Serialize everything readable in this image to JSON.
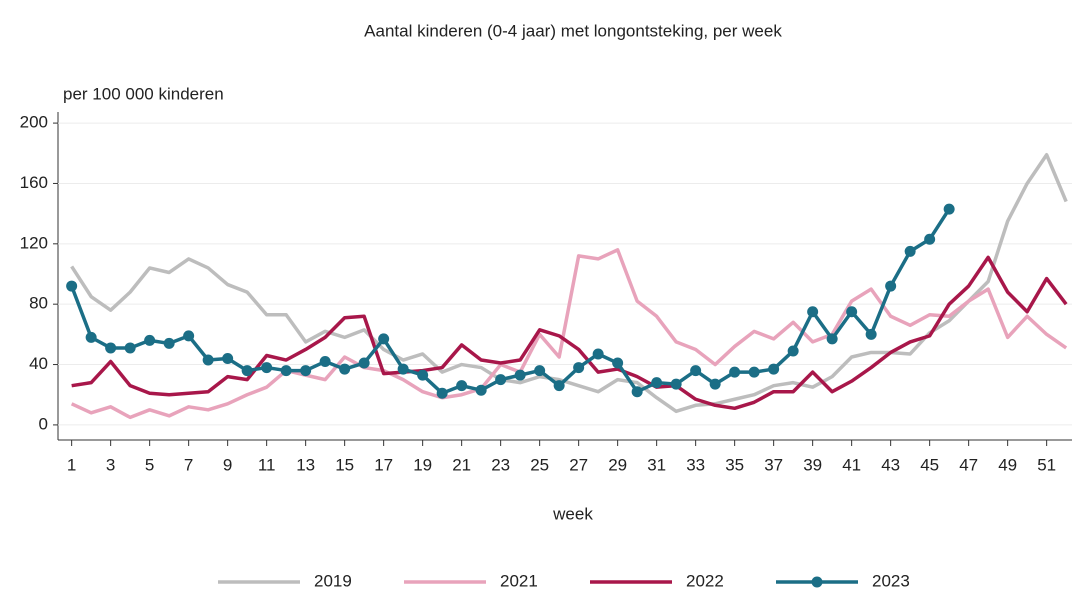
{
  "chart_data": {
    "type": "line",
    "title": "Aantal kinderen (0-4 jaar) met longontsteking, per week",
    "y_label": "per 100 000 kinderen",
    "x_label": "week",
    "x": [
      1,
      2,
      3,
      4,
      5,
      6,
      7,
      8,
      9,
      10,
      11,
      12,
      13,
      14,
      15,
      16,
      17,
      18,
      19,
      20,
      21,
      22,
      23,
      24,
      25,
      26,
      27,
      28,
      29,
      30,
      31,
      32,
      33,
      34,
      35,
      36,
      37,
      38,
      39,
      40,
      41,
      42,
      43,
      44,
      45,
      46,
      47,
      48,
      49,
      50,
      51,
      52
    ],
    "xlim": [
      0.3,
      52.3
    ],
    "xticks": [
      1,
      3,
      5,
      7,
      9,
      11,
      13,
      15,
      17,
      19,
      21,
      23,
      25,
      27,
      29,
      31,
      33,
      35,
      37,
      39,
      41,
      43,
      45,
      47,
      49,
      51
    ],
    "ylim": [
      -10,
      210
    ],
    "yticks": [
      0,
      40,
      80,
      120,
      160,
      200
    ],
    "grid": true,
    "series": [
      {
        "name": "2019",
        "color": "#bdbdbd",
        "marker": false,
        "values": [
          105,
          85,
          76,
          88,
          104,
          101,
          110,
          104,
          93,
          88,
          73,
          73,
          55,
          62,
          58,
          63,
          50,
          43,
          47,
          35,
          40,
          38,
          30,
          28,
          32,
          30,
          26,
          22,
          30,
          28,
          18,
          9,
          13,
          14,
          17,
          20,
          26,
          28,
          25,
          32,
          45,
          48,
          48,
          47,
          61,
          69,
          82,
          95,
          135,
          160,
          179,
          148
        ]
      },
      {
        "name": "2021",
        "color": "#e8a3bb",
        "marker": false,
        "values": [
          14,
          8,
          12,
          5,
          10,
          6,
          12,
          10,
          14,
          20,
          25,
          36,
          33,
          30,
          45,
          38,
          36,
          30,
          22,
          18,
          20,
          24,
          40,
          35,
          60,
          45,
          112,
          110,
          116,
          82,
          72,
          55,
          50,
          40,
          52,
          62,
          57,
          68,
          55,
          60,
          82,
          90,
          72,
          66,
          73,
          72,
          82,
          90,
          58,
          72,
          60,
          51
        ]
      },
      {
        "name": "2022",
        "color": "#a8174a",
        "marker": false,
        "values": [
          26,
          28,
          42,
          26,
          21,
          20,
          21,
          22,
          32,
          30,
          46,
          43,
          50,
          58,
          71,
          72,
          34,
          35,
          36,
          38,
          53,
          43,
          41,
          43,
          63,
          59,
          50,
          35,
          37,
          32,
          25,
          26,
          17,
          13,
          11,
          15,
          22,
          22,
          35,
          22,
          29,
          38,
          48,
          55,
          59,
          80,
          92,
          111,
          88,
          75,
          97,
          80
        ]
      },
      {
        "name": "2023",
        "color": "#1b6e86",
        "marker": true,
        "values": [
          92,
          58,
          51,
          51,
          56,
          54,
          59,
          43,
          44,
          36,
          38,
          36,
          36,
          42,
          37,
          41,
          57,
          37,
          33,
          21,
          26,
          23,
          30,
          33,
          36,
          26,
          38,
          47,
          41,
          22,
          28,
          27,
          36,
          27,
          35,
          35,
          37,
          49,
          75,
          57,
          75,
          60,
          92,
          115,
          123,
          143,
          null,
          null,
          null,
          null,
          null,
          null
        ]
      }
    ]
  }
}
